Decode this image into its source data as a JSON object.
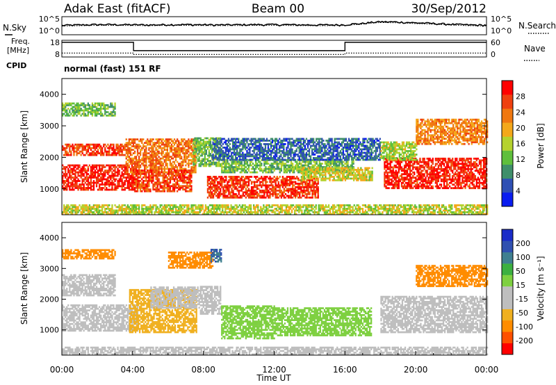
{
  "header": {
    "title": "Adak East (fitACF)",
    "beam": "Beam 00",
    "date": "30/Sep/2012"
  },
  "noise_panel": {
    "left_label": "N.Sky",
    "right_label": "N.Search",
    "left_ticks": [
      "10^5",
      "10^0"
    ],
    "right_ticks": [
      "10^5",
      "10^0"
    ]
  },
  "freq_panel": {
    "left_label_1": "Freq.",
    "left_label_2": "[MHz]",
    "left_ticks": [
      "18",
      "8"
    ],
    "right_label": "Nave",
    "right_ticks": [
      "60",
      "0"
    ],
    "cpid_label": "CPID",
    "cpid_text": "normal (fast) 151 RF"
  },
  "axes": {
    "ylabel": "Slant Range [km]",
    "xlabel": "Time UT",
    "x_ticks": [
      "00:00",
      "04:00",
      "08:00",
      "12:00",
      "16:00",
      "20:00",
      "00:00"
    ],
    "y_ticks": [
      "1000",
      "2000",
      "3000",
      "4000"
    ]
  },
  "colors": {
    "power": [
      "#0a1cf0",
      "#2f50b4",
      "#3f8f6a",
      "#5fbf3c",
      "#b5d22e",
      "#f4a81a",
      "#f07810",
      "#ef4010",
      "#ff0000"
    ],
    "velocity": [
      "#ff0000",
      "#ff5000",
      "#ff8c00",
      "#f0b020",
      "#bebebe",
      "#bebebe",
      "#7ed040",
      "#3cb040",
      "#3f7f90",
      "#3050b0",
      "#1a2cc8"
    ]
  },
  "colorbars": {
    "power": {
      "label": "Power [dB]",
      "ticks": [
        "4",
        "8",
        "12",
        "16",
        "20",
        "24",
        "28"
      ]
    },
    "velocity": {
      "label": "Velocity [m s⁻¹]",
      "ticks": [
        "200",
        "100",
        "50",
        "15",
        "-15",
        "-50",
        "-100",
        "-200"
      ]
    }
  },
  "chart_data": [
    {
      "type": "line",
      "title": "N.Sky / N.Search",
      "x_unit": "hours UT",
      "x": [
        0,
        1,
        2,
        3,
        4,
        5,
        6,
        7,
        8,
        9,
        10,
        11,
        12,
        13,
        14,
        15,
        16,
        17,
        18,
        19,
        20,
        21,
        22,
        23,
        24
      ],
      "series": [
        {
          "name": "N.Sky",
          "values": [
            300,
            400,
            500,
            500,
            450,
            400,
            500,
            500,
            450,
            400,
            450,
            500,
            500,
            450,
            400,
            400,
            450,
            1000,
            3000,
            2500,
            1500,
            1000,
            600,
            400,
            350
          ]
        }
      ],
      "y_scale": "log",
      "ylim": [
        1,
        100000
      ]
    },
    {
      "type": "line",
      "title": "Freq / Nave",
      "x_unit": "hours UT",
      "series": [
        {
          "name": "Freq. [MHz]",
          "x": [
            0,
            4.05,
            4.05,
            16,
            16,
            24
          ],
          "values": [
            16.8,
            16.8,
            11.8,
            11.8,
            16.8,
            16.8
          ]
        },
        {
          "name": "Nave",
          "x": [
            0,
            4.05,
            4.05,
            16,
            16,
            24
          ],
          "values": [
            14,
            14,
            9,
            9,
            14,
            14
          ]
        }
      ],
      "ylim_left": [
        8,
        18
      ],
      "ylim_right": [
        0,
        60
      ]
    },
    {
      "type": "heatmap",
      "title": "Power [dB]",
      "xlabel": "Time UT",
      "ylabel": "Slant Range [km]",
      "xlim": [
        0,
        24
      ],
      "ylim": [
        180,
        4500
      ],
      "zlim": [
        0,
        30
      ],
      "regions": [
        {
          "t0": 0.0,
          "t1": 3.7,
          "r0": 2050,
          "r1": 2420,
          "p": 25
        },
        {
          "t0": 0.0,
          "t1": 4.3,
          "r0": 950,
          "r1": 1750,
          "p": 27
        },
        {
          "t0": 3.6,
          "t1": 7.6,
          "r0": 1500,
          "r1": 2600,
          "p": 22
        },
        {
          "t0": 4.0,
          "t1": 7.3,
          "r0": 900,
          "r1": 1600,
          "p": 25
        },
        {
          "t0": 7.4,
          "t1": 9.0,
          "r0": 1700,
          "r1": 2600,
          "p": 12
        },
        {
          "t0": 9.0,
          "t1": 16.5,
          "r0": 1500,
          "r1": 1900,
          "p": 12
        },
        {
          "t0": 8.2,
          "t1": 14.5,
          "r0": 700,
          "r1": 1400,
          "p": 26
        },
        {
          "t0": 13.5,
          "t1": 17.5,
          "r0": 1250,
          "r1": 1650,
          "p": 16
        },
        {
          "t0": 8.5,
          "t1": 18.0,
          "r0": 1900,
          "r1": 2600,
          "p": 6
        },
        {
          "t0": 18.2,
          "t1": 24.0,
          "r0": 1000,
          "r1": 1950,
          "p": 27
        },
        {
          "t0": 18.0,
          "t1": 20.0,
          "r0": 1900,
          "r1": 2500,
          "p": 14
        },
        {
          "t0": 20.0,
          "t1": 24.0,
          "r0": 2400,
          "r1": 3200,
          "p": 21
        },
        {
          "t0": 0.0,
          "t1": 3.0,
          "r0": 3300,
          "r1": 3700,
          "p": 12
        },
        {
          "t0": 0.0,
          "t1": 24.0,
          "r0": 180,
          "r1": 500,
          "p": 15
        }
      ]
    },
    {
      "type": "heatmap",
      "title": "Velocity [m s⁻¹]",
      "xlabel": "Time UT",
      "ylabel": "Slant Range [km]",
      "xlim": [
        0,
        24
      ],
      "ylim": [
        180,
        4500
      ],
      "zlim": [
        -250,
        250
      ],
      "regions": [
        {
          "t0": 0.0,
          "t1": 3.0,
          "r0": 2100,
          "r1": 2800,
          "v": 0
        },
        {
          "t0": 0.0,
          "t1": 4.3,
          "r0": 950,
          "r1": 1800,
          "v": 0
        },
        {
          "t0": 3.8,
          "t1": 7.6,
          "r0": 900,
          "r1": 2300,
          "v": -40
        },
        {
          "t0": 5.0,
          "t1": 7.8,
          "r0": 1700,
          "r1": 2400,
          "v": 0
        },
        {
          "t0": 7.8,
          "t1": 9.0,
          "r0": 1500,
          "r1": 2400,
          "v": 0
        },
        {
          "t0": 9.0,
          "t1": 12.0,
          "r0": 700,
          "r1": 1800,
          "v": 30
        },
        {
          "t0": 12.0,
          "t1": 17.5,
          "r0": 800,
          "r1": 1700,
          "v": 40
        },
        {
          "t0": 18.0,
          "t1": 24.0,
          "r0": 900,
          "r1": 2100,
          "v": 0
        },
        {
          "t0": 0.0,
          "t1": 3.0,
          "r0": 3300,
          "r1": 3600,
          "v": -60
        },
        {
          "t0": 6.0,
          "t1": 8.5,
          "r0": 3000,
          "r1": 3500,
          "v": -60
        },
        {
          "t0": 8.4,
          "t1": 9.0,
          "r0": 3200,
          "r1": 3600,
          "v": 150
        },
        {
          "t0": 20.0,
          "t1": 24.0,
          "r0": 2400,
          "r1": 3100,
          "v": -60
        },
        {
          "t0": 0.0,
          "t1": 24.0,
          "r0": 180,
          "r1": 450,
          "v": 0
        }
      ]
    }
  ]
}
